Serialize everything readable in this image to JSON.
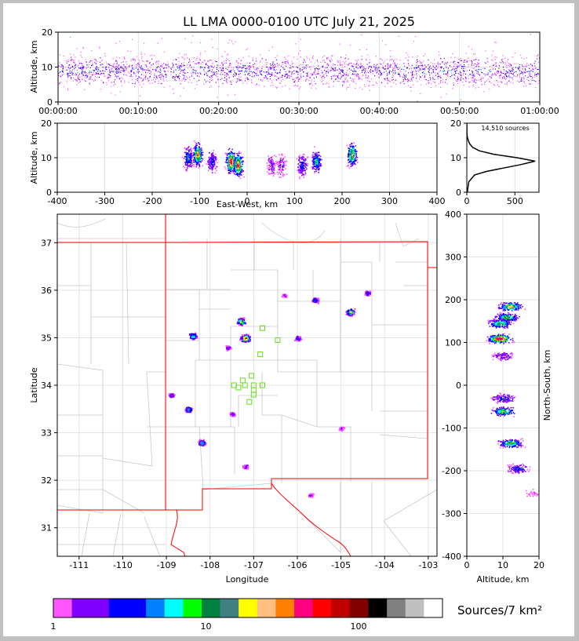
{
  "chart_data": {
    "type": "lightning-mapping-composite",
    "title": "LL LMA 0000-0100 UTC July 21, 2025",
    "time_height": {
      "ylabel": "Altitude, km",
      "ylim": [
        0,
        20
      ],
      "yticks": [
        "0",
        "10",
        "20"
      ],
      "xticks": [
        "00:00:00",
        "00:10:00",
        "00:20:00",
        "00:30:00",
        "00:40:00",
        "00:50:00",
        "01:00:00"
      ],
      "xlim_minutes": [
        0,
        60
      ],
      "source_altitude_band_km": [
        5,
        15
      ],
      "core_altitude_km": 9
    },
    "east_west_height": {
      "xlabel": "East-West, km",
      "ylabel": "Altitude, km",
      "xlim": [
        -400,
        400
      ],
      "ylim": [
        0,
        20
      ],
      "xticks": [
        "-400",
        "-300",
        "-200",
        "-100",
        "0",
        "100",
        "200",
        "300",
        "400"
      ],
      "yticks": [
        "0",
        "10",
        "20"
      ],
      "clusters": [
        {
          "x": -105,
          "alt": 11,
          "density": 0.85
        },
        {
          "x": -125,
          "alt": 10,
          "density": 0.5
        },
        {
          "x": -75,
          "alt": 9,
          "density": 0.4
        },
        {
          "x": -35,
          "alt": 9,
          "density": 0.95
        },
        {
          "x": -20,
          "alt": 8,
          "density": 0.9
        },
        {
          "x": 50,
          "alt": 8,
          "density": 0.2
        },
        {
          "x": 70,
          "alt": 8,
          "density": 0.2
        },
        {
          "x": 115,
          "alt": 8,
          "density": 0.4
        },
        {
          "x": 145,
          "alt": 9,
          "density": 0.6
        },
        {
          "x": 220,
          "alt": 11,
          "density": 0.8
        }
      ]
    },
    "altitude_histogram": {
      "annotation": "14,510 sources",
      "xlim": [
        0,
        750
      ],
      "ylim": [
        0,
        20
      ],
      "xticks": [
        "0",
        "500"
      ],
      "yticks": [
        "0",
        "10",
        "20"
      ],
      "profile": [
        {
          "alt": 0,
          "count": 5
        },
        {
          "alt": 3,
          "count": 20
        },
        {
          "alt": 5,
          "count": 80
        },
        {
          "alt": 6,
          "count": 200
        },
        {
          "alt": 7,
          "count": 380
        },
        {
          "alt": 8,
          "count": 560
        },
        {
          "alt": 9,
          "count": 710
        },
        {
          "alt": 10,
          "count": 520
        },
        {
          "alt": 11,
          "count": 280
        },
        {
          "alt": 12,
          "count": 130
        },
        {
          "alt": 13,
          "count": 60
        },
        {
          "alt": 14,
          "count": 30
        },
        {
          "alt": 15,
          "count": 15
        },
        {
          "alt": 16,
          "count": 5
        },
        {
          "alt": 17,
          "count": 2
        },
        {
          "alt": 20,
          "count": 0
        }
      ]
    },
    "plan_view": {
      "xlabel": "Longitude",
      "ylabel": "Latitude",
      "xlim": [
        -111.5,
        -102.8
      ],
      "ylim": [
        30.4,
        37.6
      ],
      "xticks": [
        "-111",
        "-110",
        "-109",
        "-108",
        "-107",
        "-106",
        "-105",
        "-104",
        "-103"
      ],
      "yticks": [
        "31",
        "32",
        "33",
        "34",
        "35",
        "36",
        "37"
      ],
      "storms": [
        {
          "lon": -108.4,
          "lat": 35.05,
          "density": 0.7
        },
        {
          "lon": -107.3,
          "lat": 35.35,
          "density": 0.8
        },
        {
          "lon": -107.2,
          "lat": 35.0,
          "density": 1.0
        },
        {
          "lon": -107.6,
          "lat": 34.8,
          "density": 0.3
        },
        {
          "lon": -108.9,
          "lat": 33.8,
          "density": 0.3
        },
        {
          "lon": -108.5,
          "lat": 33.5,
          "density": 0.6
        },
        {
          "lon": -108.2,
          "lat": 32.8,
          "density": 0.6
        },
        {
          "lon": -107.5,
          "lat": 33.4,
          "density": 0.3
        },
        {
          "lon": -107.2,
          "lat": 32.3,
          "density": 0.3
        },
        {
          "lon": -106.0,
          "lat": 35.0,
          "density": 0.4
        },
        {
          "lon": -105.6,
          "lat": 35.8,
          "density": 0.5
        },
        {
          "lon": -104.8,
          "lat": 35.55,
          "density": 0.8
        },
        {
          "lon": -104.4,
          "lat": 35.95,
          "density": 0.4
        },
        {
          "lon": -105.0,
          "lat": 33.1,
          "density": 0.2
        },
        {
          "lon": -105.7,
          "lat": 31.7,
          "density": 0.2
        },
        {
          "lon": -106.3,
          "lat": 35.9,
          "density": 0.2
        }
      ],
      "stations": [
        [
          -106.8,
          35.2
        ],
        [
          -106.45,
          34.95
        ],
        [
          -106.85,
          34.65
        ],
        [
          -107.05,
          34.2
        ],
        [
          -107.25,
          34.1
        ],
        [
          -107.45,
          34.0
        ],
        [
          -107.2,
          34.0
        ],
        [
          -107.0,
          34.0
        ],
        [
          -106.8,
          34.0
        ],
        [
          -107.0,
          33.9
        ],
        [
          -107.0,
          33.8
        ],
        [
          -107.1,
          33.65
        ],
        [
          -107.35,
          33.95
        ]
      ]
    },
    "north_south_height": {
      "xlabel": "Altitude, km",
      "ylabel": "North-South, km",
      "xlim": [
        0,
        20
      ],
      "ylim": [
        -400,
        400
      ],
      "xticks": [
        "0",
        "10",
        "20"
      ],
      "yticks": [
        "-400",
        "-300",
        "-200",
        "-100",
        "0",
        "100",
        "200",
        "300",
        "400"
      ],
      "clusters": [
        {
          "y": 185,
          "alt": 12,
          "density": 0.8
        },
        {
          "y": 160,
          "alt": 11,
          "density": 0.7
        },
        {
          "y": 145,
          "alt": 9,
          "density": 0.7
        },
        {
          "y": 110,
          "alt": 9,
          "density": 1.0
        },
        {
          "y": 70,
          "alt": 10,
          "density": 0.3
        },
        {
          "y": -30,
          "alt": 10,
          "density": 0.4
        },
        {
          "y": -60,
          "alt": 10,
          "density": 0.7
        },
        {
          "y": -135,
          "alt": 12,
          "density": 0.7
        },
        {
          "y": -195,
          "alt": 14,
          "density": 0.4
        },
        {
          "y": -250,
          "alt": 19,
          "density": 0.1
        }
      ]
    },
    "colorbar": {
      "title": "Sources/7 km²",
      "tick_labels": [
        "1",
        "10",
        "100"
      ],
      "colors": [
        "#ff55ff",
        "#8000ff",
        "#8000ff",
        "#0000ff",
        "#0000ff",
        "#0080ff",
        "#00ffff",
        "#00ff00",
        "#008040",
        "#408080",
        "#ffff00",
        "#ffc080",
        "#ff8000",
        "#ff0080",
        "#ff0000",
        "#c00000",
        "#800000",
        "#000000",
        "#808080",
        "#c0c0c0",
        "#ffffff"
      ]
    }
  }
}
